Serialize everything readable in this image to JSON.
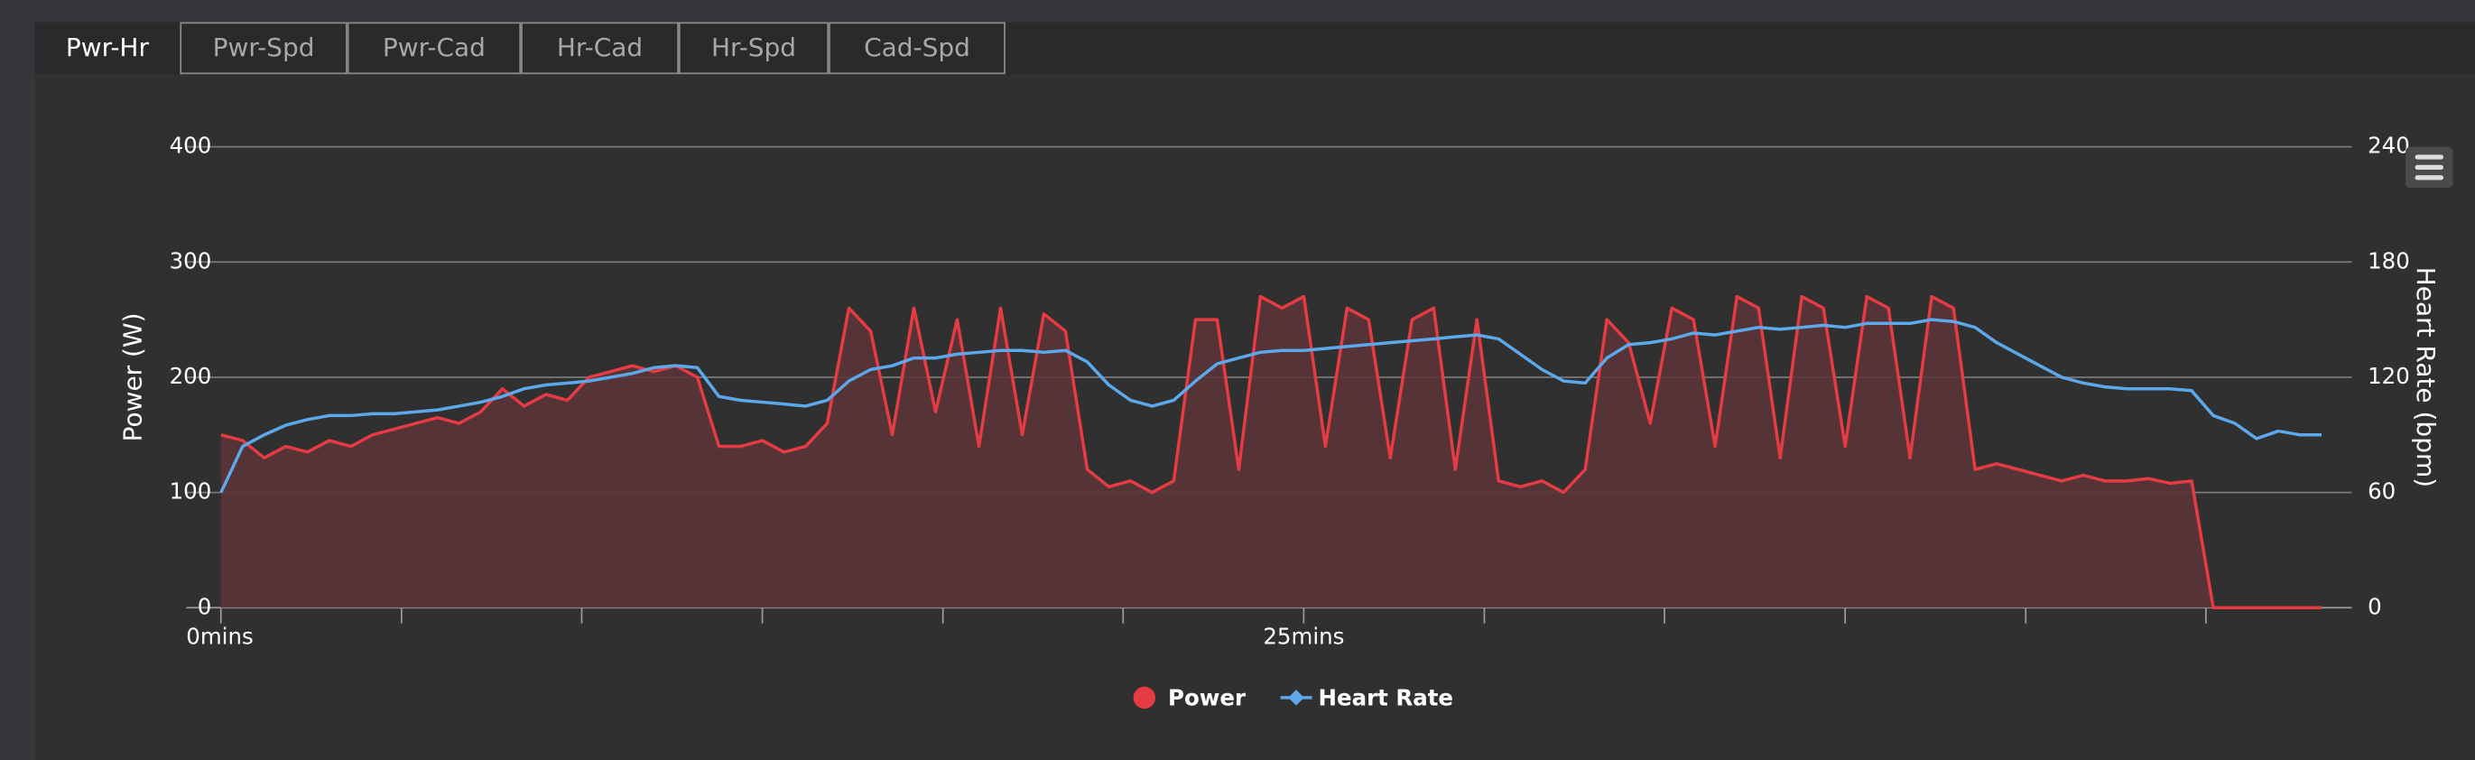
{
  "tabs": [
    "Pwr-Hr",
    "Pwr-Spd",
    "Pwr-Cad",
    "Hr-Cad",
    "Hr-Spd",
    "Cad-Spd"
  ],
  "chart_data": {
    "type": "line",
    "y_label": "Power (W)",
    "y2_label": "Heart Rate (bpm)",
    "x": [
      0,
      0.5,
      1,
      1.5,
      2,
      2.5,
      3,
      3.5,
      4,
      4.5,
      5,
      5.5,
      6,
      6.5,
      7,
      7.5,
      8,
      8.5,
      9,
      9.5,
      10,
      10.5,
      11,
      11.5,
      12,
      12.5,
      13,
      13.5,
      14,
      14.5,
      15,
      15.5,
      16,
      16.5,
      17,
      17.5,
      18,
      18.5,
      19,
      19.5,
      20,
      20.5,
      21,
      21.5,
      22,
      22.5,
      23,
      23.5,
      24,
      24.5,
      25,
      25.5,
      26,
      26.5,
      27,
      27.5,
      28,
      28.5,
      29,
      29.5,
      30,
      30.5,
      31,
      31.5,
      32,
      32.5,
      33,
      33.5,
      34,
      34.5,
      35,
      35.5,
      36,
      36.5,
      37,
      37.5,
      38,
      38.5,
      39,
      39.5,
      40,
      40.5,
      41,
      41.5,
      42,
      42.5,
      43,
      43.5,
      44,
      44.5,
      45,
      45.5,
      46,
      46.5,
      47,
      47.5,
      48,
      48.5
    ],
    "series": [
      {
        "name": "Power",
        "color": "#e53b42",
        "fill": "#5a3438",
        "values": [
          150,
          145,
          130,
          140,
          135,
          145,
          140,
          150,
          155,
          160,
          165,
          160,
          170,
          190,
          175,
          185,
          180,
          200,
          205,
          210,
          205,
          210,
          200,
          140,
          140,
          145,
          135,
          140,
          160,
          260,
          240,
          150,
          260,
          170,
          250,
          140,
          260,
          150,
          255,
          240,
          120,
          105,
          110,
          100,
          110,
          250,
          250,
          120,
          270,
          260,
          270,
          140,
          260,
          250,
          130,
          250,
          260,
          120,
          250,
          110,
          105,
          110,
          100,
          120,
          250,
          230,
          160,
          260,
          250,
          140,
          270,
          260,
          130,
          270,
          260,
          140,
          270,
          260,
          130,
          270,
          260,
          120,
          125,
          120,
          115,
          110,
          115,
          110,
          110,
          112,
          108,
          110,
          0,
          0,
          0,
          0,
          0,
          0
        ]
      },
      {
        "name": "Heart Rate",
        "color": "#5ca8ea",
        "axis": "y2",
        "values": [
          60,
          84,
          90,
          95,
          98,
          100,
          100,
          101,
          101,
          102,
          103,
          105,
          107,
          110,
          114,
          116,
          117,
          118,
          120,
          122,
          125,
          126,
          125,
          110,
          108,
          107,
          106,
          105,
          108,
          118,
          124,
          126,
          130,
          130,
          132,
          133,
          134,
          134,
          133,
          134,
          128,
          116,
          108,
          105,
          108,
          118,
          127,
          130,
          133,
          134,
          134,
          135,
          136,
          137,
          138,
          139,
          140,
          141,
          142,
          140,
          132,
          124,
          118,
          117,
          130,
          137,
          138,
          140,
          143,
          142,
          144,
          146,
          145,
          146,
          147,
          146,
          148,
          148,
          148,
          150,
          149,
          146,
          138,
          132,
          126,
          120,
          117,
          115,
          114,
          114,
          114,
          113,
          100,
          96,
          88,
          92,
          90,
          90
        ]
      }
    ],
    "xlim": [
      -0.8,
      49.2
    ],
    "xticks": [
      {
        "value": 0,
        "label": "0mins"
      },
      {
        "value": 25,
        "label": "25mins"
      }
    ],
    "xminor_ticks": [
      4.17,
      8.33,
      12.5,
      16.67,
      20.83,
      29.17,
      33.33,
      37.5,
      41.67,
      45.83
    ],
    "ylim": [
      0,
      400
    ],
    "yticks": [
      0,
      100,
      200,
      300,
      400
    ],
    "y2lim": [
      0,
      240
    ],
    "y2ticks": [
      0,
      60,
      120,
      180,
      240
    ],
    "grid": true
  }
}
